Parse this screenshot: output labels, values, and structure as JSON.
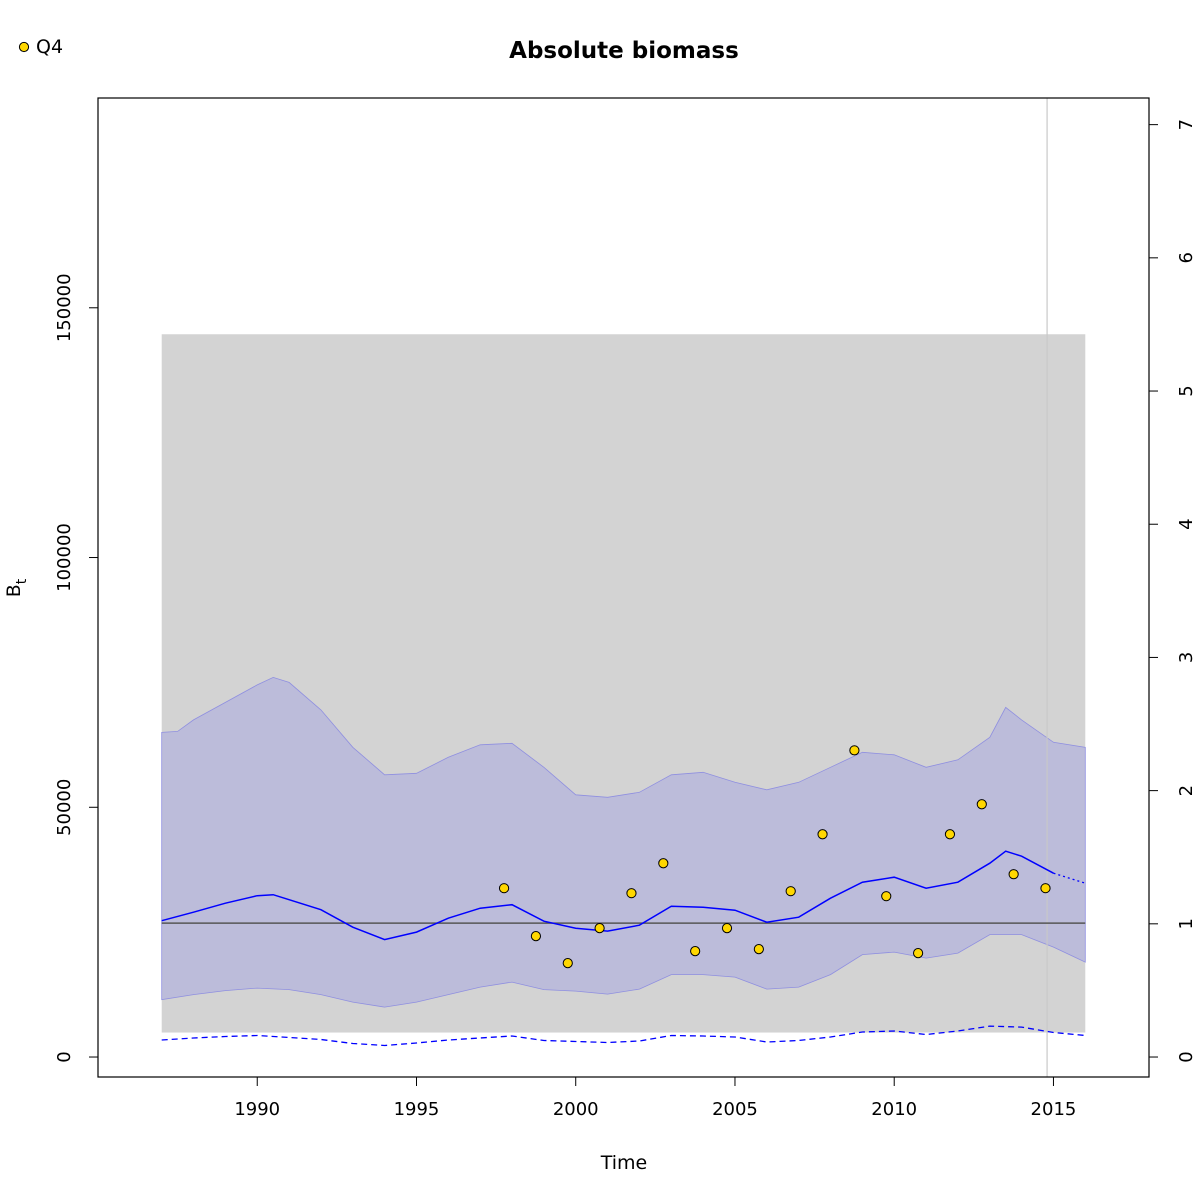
{
  "chart_data": {
    "type": "line",
    "title": "Absolute biomass",
    "xlabel": "Time",
    "ylabel": "B",
    "ylabel_subscript": "t",
    "xlim": [
      1985,
      2018
    ],
    "ylim": [
      -4000,
      192000
    ],
    "y2lim": [
      -0.15,
      7.2
    ],
    "x_ticks": [
      1990,
      1995,
      2000,
      2005,
      2010,
      2015
    ],
    "y_ticks": [
      0,
      50000,
      100000,
      150000
    ],
    "y_tick_labels": [
      "0",
      "50000",
      "100000",
      "150000"
    ],
    "y2_ticks": [
      0,
      1,
      2,
      3,
      4,
      5,
      6,
      7
    ],
    "y2_tick_labels": [
      "0",
      "1",
      "2",
      "3",
      "4",
      "5",
      "6",
      "7"
    ],
    "reference_band": {
      "x": [
        1987,
        2016
      ],
      "ymin": 4900,
      "ymax": 144700
    },
    "reference_line_y": 26800,
    "vertical_line_x": 2014.8,
    "colors": {
      "band": "#d3d3d3",
      "ci": "#bcbcda",
      "ci_edge": "#8f8fe0",
      "line": "#0000ff",
      "ref": "#555555",
      "vline": "#c8c8c8",
      "points": "#ffd700"
    },
    "series": [
      {
        "role": "estimate",
        "x": [
          1987,
          1988,
          1989,
          1990,
          1990.5,
          1991,
          1992,
          1993,
          1994,
          1995,
          1996,
          1997,
          1998,
          1999,
          2000,
          2001,
          2002,
          2003,
          2004,
          2005,
          2006,
          2007,
          2008,
          2009,
          2010,
          2011,
          2012,
          2013,
          2013.5,
          2014,
          2015
        ],
        "y": [
          27300,
          29000,
          30800,
          32300,
          32500,
          31500,
          29500,
          26000,
          23500,
          25000,
          27800,
          29800,
          30500,
          27200,
          25800,
          25200,
          26400,
          30200,
          30000,
          29400,
          27000,
          28000,
          31800,
          35000,
          36000,
          33800,
          35000,
          38800,
          41200,
          40200,
          36800
        ]
      },
      {
        "role": "forecast",
        "x": [
          2015,
          2016
        ],
        "y": [
          36800,
          34800
        ]
      },
      {
        "role": "ci_upper",
        "x": [
          1987,
          1987.5,
          1988,
          1989,
          1990,
          1990.5,
          1991,
          1992,
          1993,
          1994,
          1995,
          1996,
          1997,
          1998,
          1999,
          2000,
          2001,
          2002,
          2003,
          2004,
          2005,
          2006,
          2007,
          2008,
          2009,
          2010,
          2011,
          2012,
          2013,
          2013.5,
          2014,
          2015,
          2016
        ],
        "y": [
          65000,
          65200,
          67500,
          71000,
          74500,
          76000,
          75000,
          69500,
          62000,
          56500,
          56800,
          60000,
          62500,
          62800,
          58000,
          52500,
          52000,
          53000,
          56500,
          57000,
          55000,
          53500,
          55000,
          58000,
          61000,
          60500,
          58000,
          59500,
          64000,
          70000,
          67500,
          63000,
          62000
        ]
      },
      {
        "role": "ci_lower",
        "x": [
          1987,
          1988,
          1989,
          1990,
          1991,
          1992,
          1993,
          1994,
          1995,
          1996,
          1997,
          1998,
          1999,
          2000,
          2001,
          2002,
          2003,
          2004,
          2005,
          2006,
          2007,
          2008,
          2009,
          2010,
          2011,
          2012,
          2013,
          2014,
          2015,
          2016
        ],
        "y": [
          11500,
          12500,
          13300,
          13800,
          13500,
          12500,
          11000,
          10000,
          11000,
          12500,
          14000,
          15000,
          13500,
          13200,
          12600,
          13600,
          16500,
          16500,
          16000,
          13600,
          14000,
          16500,
          20500,
          21000,
          19800,
          20800,
          24500,
          24500,
          22000,
          19000
        ]
      },
      {
        "role": "lower_dashed",
        "x": [
          1987,
          1988,
          1989,
          1990,
          1991,
          1992,
          1993,
          1994,
          1995,
          1996,
          1997,
          1998,
          1999,
          2000,
          2001,
          2002,
          2003,
          2004,
          2005,
          2006,
          2007,
          2008,
          2009,
          2010,
          2011,
          2012,
          2013,
          2014,
          2015,
          2016
        ],
        "y": [
          3400,
          3800,
          4100,
          4300,
          3900,
          3500,
          2700,
          2300,
          2800,
          3400,
          3800,
          4200,
          3300,
          3100,
          2900,
          3200,
          4300,
          4200,
          4000,
          3000,
          3300,
          4000,
          5000,
          5200,
          4500,
          5200,
          6200,
          6000,
          4900,
          4300
        ]
      },
      {
        "name": "Q4",
        "role": "points",
        "x": [
          1997.75,
          1998.75,
          1999.75,
          2000.75,
          2001.75,
          2002.75,
          2003.75,
          2004.75,
          2005.75,
          2006.75,
          2007.75,
          2008.75,
          2009.75,
          2010.75,
          2011.75,
          2012.75,
          2013.75,
          2014.75
        ],
        "y": [
          33800,
          24200,
          18800,
          25800,
          32800,
          38800,
          21200,
          25800,
          21600,
          33200,
          44600,
          61400,
          32200,
          20800,
          44600,
          50600,
          36600,
          33800
        ]
      }
    ],
    "legend": {
      "position": "top-left",
      "entries": [
        "Q4"
      ]
    }
  }
}
